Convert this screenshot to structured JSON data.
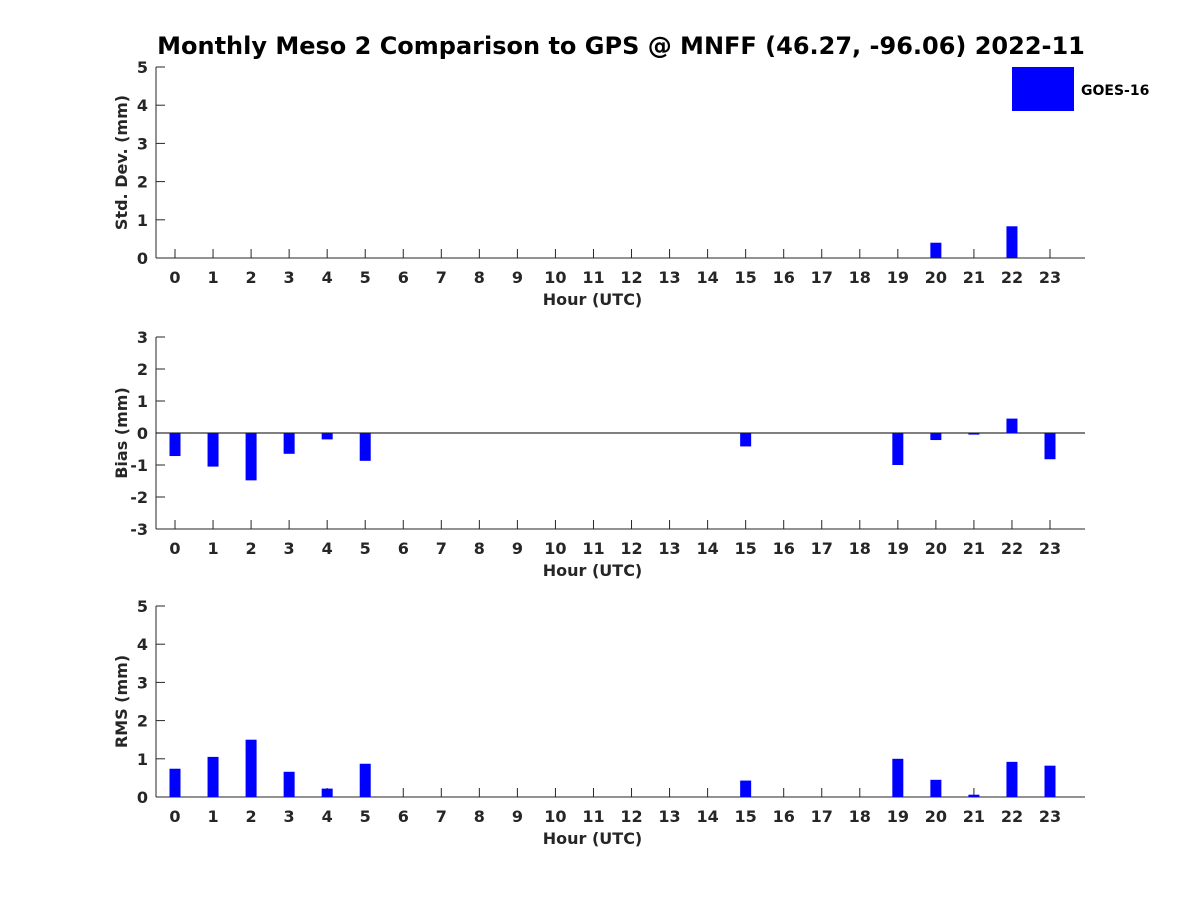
{
  "title": "Monthly Meso 2 Comparison to GPS @ MNFF (46.27, -96.06) 2022-11",
  "legend": {
    "label": "GOES-16",
    "color": "#0000ff",
    "placement": "top-right"
  },
  "chart_data": [
    {
      "type": "bar",
      "ylabel": "Std. Dev. (mm)",
      "xlabel": "Hour (UTC)",
      "ylim": [
        0,
        5
      ],
      "yticks": [
        0,
        1,
        2,
        3,
        4,
        5
      ],
      "categories": [
        "0",
        "1",
        "2",
        "3",
        "4",
        "5",
        "6",
        "7",
        "8",
        "9",
        "10",
        "11",
        "12",
        "13",
        "14",
        "15",
        "16",
        "17",
        "18",
        "19",
        "20",
        "21",
        "22",
        "23"
      ],
      "series": [
        {
          "name": "GOES-16",
          "color": "#0000ff",
          "values": [
            null,
            null,
            null,
            null,
            null,
            null,
            null,
            null,
            null,
            null,
            null,
            null,
            null,
            null,
            null,
            null,
            null,
            null,
            null,
            null,
            0.4,
            null,
            0.83,
            null
          ]
        }
      ]
    },
    {
      "type": "bar",
      "ylabel": "Bias (mm)",
      "xlabel": "Hour (UTC)",
      "ylim": [
        -3,
        3
      ],
      "yticks": [
        -3,
        -2,
        -1,
        0,
        1,
        2,
        3
      ],
      "zero_line": true,
      "categories": [
        "0",
        "1",
        "2",
        "3",
        "4",
        "5",
        "6",
        "7",
        "8",
        "9",
        "10",
        "11",
        "12",
        "13",
        "14",
        "15",
        "16",
        "17",
        "18",
        "19",
        "20",
        "21",
        "22",
        "23"
      ],
      "series": [
        {
          "name": "GOES-16",
          "color": "#0000ff",
          "values": [
            -0.72,
            -1.05,
            -1.48,
            -0.65,
            -0.2,
            -0.87,
            null,
            null,
            null,
            null,
            null,
            null,
            null,
            null,
            null,
            -0.42,
            null,
            null,
            null,
            -1.0,
            -0.22,
            -0.05,
            0.45,
            -0.82
          ]
        }
      ]
    },
    {
      "type": "bar",
      "ylabel": "RMS (mm)",
      "xlabel": "Hour (UTC)",
      "ylim": [
        0,
        5
      ],
      "yticks": [
        0,
        1,
        2,
        3,
        4,
        5
      ],
      "categories": [
        "0",
        "1",
        "2",
        "3",
        "4",
        "5",
        "6",
        "7",
        "8",
        "9",
        "10",
        "11",
        "12",
        "13",
        "14",
        "15",
        "16",
        "17",
        "18",
        "19",
        "20",
        "21",
        "22",
        "23"
      ],
      "series": [
        {
          "name": "GOES-16",
          "color": "#0000ff",
          "values": [
            0.74,
            1.05,
            1.5,
            0.66,
            0.22,
            0.87,
            null,
            null,
            null,
            null,
            null,
            null,
            null,
            null,
            null,
            0.43,
            null,
            null,
            null,
            1.0,
            0.45,
            0.06,
            0.92,
            0.82
          ]
        }
      ]
    }
  ]
}
